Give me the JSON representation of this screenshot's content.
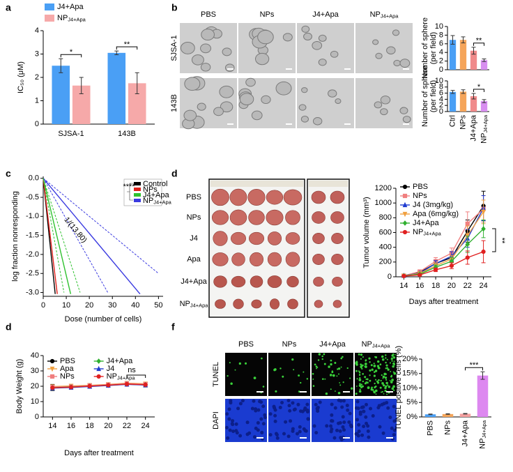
{
  "figure": {
    "panel_labels": [
      "a",
      "b",
      "c",
      "d",
      "d",
      "f"
    ],
    "b_columns": [
      "PBS",
      "NPs",
      "J4+Apa",
      {
        "text": "NP",
        "sub": "J4+Apa"
      }
    ],
    "b_rows": [
      "SJSA-1",
      "143B"
    ],
    "d_rows": [
      "PBS",
      "NPs",
      "J4",
      "Apa",
      "J4+Apa",
      {
        "text": "NP",
        "sub": "J4+Apa"
      }
    ],
    "f_columns": [
      "PBS",
      "NPs",
      "J4+Apa",
      {
        "text": "NP",
        "sub": "J4+Apa"
      }
    ],
    "f_rows": [
      "TUNEL",
      "DAPI"
    ]
  },
  "chart_data": [
    {
      "type": "bar",
      "ylabel": "IC₅₀ (μM)",
      "categories": [
        "SJSA-1",
        "143B"
      ],
      "series": [
        {
          "name": "J4+Apa",
          "color": "#4a9ff5",
          "values": [
            2.5,
            3.05
          ],
          "errors": [
            0.3,
            0.08
          ]
        },
        {
          "name": "NP",
          "name_sub": "J4+Apa",
          "color": "#f6a9a9",
          "values": [
            1.65,
            1.75
          ],
          "errors": [
            0.35,
            0.45
          ]
        }
      ],
      "ylim": [
        0,
        4
      ],
      "yticks": [
        0,
        1,
        2,
        3,
        4
      ],
      "legend": "upper left",
      "annotations": [
        {
          "text": "*",
          "between": [
            0,
            1
          ]
        },
        {
          "text": "**",
          "between": [
            2,
            3
          ]
        }
      ]
    },
    {
      "type": "bar",
      "ylabel": [
        "Number of sphere",
        "(per field)"
      ],
      "values": [
        6.9,
        6.9,
        4.4,
        2.2
      ],
      "errors": [
        1.0,
        0.7,
        0.8,
        0.3
      ],
      "colors": [
        "#4a9ff5",
        "#f5a55a",
        "#f08a8a",
        "#d88ef0"
      ],
      "ylim": [
        0,
        10
      ],
      "yticks": [
        0,
        2,
        4,
        6,
        8,
        10
      ],
      "annotations": [
        {
          "text": "**",
          "between": [
            2,
            3
          ]
        }
      ]
    },
    {
      "type": "bar",
      "ylabel": [
        "Number of sphere",
        "(per field)"
      ],
      "categories": [
        "Ctrl",
        "NPs",
        "J4+Apa",
        {
          "text": "NP",
          "sub": "J4+Apa"
        }
      ],
      "values": [
        6.4,
        6.5,
        5.0,
        3.4
      ],
      "errors": [
        0.5,
        0.6,
        0.9,
        0.5
      ],
      "colors": [
        "#4a9ff5",
        "#f5a55a",
        "#f08a8a",
        "#d88ef0"
      ],
      "ylim": [
        0,
        10
      ],
      "yticks": [
        0,
        2,
        4,
        6,
        8,
        10
      ],
      "x_tick_rotation": -90,
      "annotations": [
        {
          "text": "*",
          "between": [
            2,
            3
          ]
        }
      ]
    },
    {
      "type": "line",
      "ylabel": "log fraction nonresponding",
      "xlabel": "Dose (number of cells)",
      "xlim": [
        0,
        52
      ],
      "xticks": [
        0,
        10,
        20,
        30,
        40,
        50
      ],
      "ylim": [
        -3.1,
        0.05
      ],
      "yticks": [
        {
          "value": 0,
          "label": "0.0"
        },
        {
          "value": -0.5,
          "label": "-0.5"
        },
        {
          "value": -1,
          "label": "-1.0"
        },
        {
          "value": -1.5,
          "label": "-1.5"
        },
        {
          "value": -2,
          "label": "-2.0"
        },
        {
          "value": -2.5,
          "label": "-2.5"
        },
        {
          "value": -3,
          "label": "-3.0"
        }
      ],
      "legend": "upper right",
      "series": [
        {
          "name": "Control",
          "color": "#000000",
          "x": [
            0,
            5.2
          ],
          "values": [
            0,
            -3.04
          ]
        },
        {
          "name": "NPs",
          "color": "#e0201b",
          "x": [
            0,
            6.1
          ],
          "values": [
            0,
            -3.04
          ]
        },
        {
          "name": "J4+Apa",
          "color": "#2fc12f",
          "x": [
            0,
            11.9
          ],
          "values": [
            0,
            -3.04
          ]
        },
        {
          "name": "NP",
          "name_sub": "J4+Apa",
          "color": "#3a3ae0",
          "x": [
            0,
            42
          ],
          "values": [
            0,
            -3.04
          ]
        },
        {
          "color": "#3a3ae0",
          "dash": true,
          "x": [
            0,
            50
          ],
          "values": [
            0,
            -2.5
          ]
        },
        {
          "color": "#3a3ae0",
          "dash": true,
          "x": [
            0,
            28
          ],
          "values": [
            0,
            -3.0
          ]
        },
        {
          "color": "#2fc12f",
          "dash": true,
          "x": [
            0,
            16
          ],
          "values": [
            0,
            -3.0
          ]
        },
        {
          "color": "#2fc12f",
          "dash": true,
          "x": [
            0,
            9
          ],
          "values": [
            0,
            -3.0
          ]
        }
      ],
      "annotations": [
        {
          "text": "1/(13.80)"
        },
        {
          "text": "****"
        }
      ]
    },
    {
      "type": "line",
      "ylabel": "Tumor volume (mm³)",
      "xlabel": "Days after treatment",
      "x": [
        14,
        16,
        18,
        20,
        22,
        24
      ],
      "xlim": [
        13,
        25
      ],
      "xticks": [
        14,
        16,
        18,
        20,
        22,
        24
      ],
      "ylim": [
        0,
        1200
      ],
      "yticks": [
        0,
        200,
        400,
        600,
        800,
        1000,
        1200
      ],
      "legend": "upper left",
      "series": [
        {
          "name": "PBS",
          "color": "#000000",
          "marker": "circle",
          "values": [
            15,
            60,
            180,
            260,
            620,
            960
          ],
          "errors": [
            5,
            20,
            40,
            60,
            150,
            200
          ]
        },
        {
          "name": "NPs",
          "color": "#f07f7f",
          "marker": "square",
          "values": [
            15,
            70,
            210,
            320,
            720,
            920
          ],
          "errors": [
            5,
            25,
            50,
            70,
            160,
            180
          ]
        },
        {
          "name": "J4 (3mg/kg)",
          "color": "#1f3bd0",
          "marker": "triangle",
          "values": [
            15,
            50,
            180,
            280,
            520,
            930
          ],
          "errors": [
            5,
            20,
            40,
            60,
            120,
            170
          ]
        },
        {
          "name": "Apa (6mg/kg)",
          "color": "#f0a040",
          "marker": "triangle-down",
          "values": [
            12,
            45,
            150,
            240,
            560,
            880
          ],
          "errors": [
            5,
            20,
            40,
            50,
            130,
            160
          ]
        },
        {
          "name": "J4+Apa",
          "color": "#30b030",
          "marker": "diamond",
          "values": [
            12,
            35,
            130,
            210,
            440,
            650
          ],
          "errors": [
            5,
            15,
            30,
            50,
            110,
            120
          ]
        },
        {
          "name": "NP",
          "name_sub": "J4+Apa",
          "color": "#e02020",
          "marker": "circle",
          "values": [
            10,
            25,
            95,
            150,
            260,
            340
          ],
          "errors": [
            4,
            10,
            25,
            40,
            90,
            150
          ]
        }
      ],
      "annotations": [
        {
          "text": "**"
        }
      ]
    },
    {
      "type": "line",
      "ylabel": "Body Weight (g)",
      "xlabel": "Days after treatment",
      "x": [
        14,
        16,
        18,
        20,
        22,
        24
      ],
      "xlim": [
        13,
        25
      ],
      "xticks": [
        14,
        16,
        18,
        20,
        22,
        24
      ],
      "ylim": [
        0,
        40
      ],
      "yticks": [
        0,
        10,
        20,
        30,
        40
      ],
      "legend": "upper center",
      "legend_columns": 2,
      "series": [
        {
          "name": "PBS",
          "color": "#000000",
          "marker": "circle",
          "values": [
            19.2,
            19.6,
            20.2,
            20.8,
            21.5,
            21.0
          ],
          "errors": [
            2,
            1.5,
            1.5,
            1.2,
            1.5,
            1.5
          ]
        },
        {
          "name": "Apa",
          "color": "#f0a040",
          "marker": "triangle-down",
          "values": [
            19.8,
            20.2,
            20.6,
            21.2,
            22.0,
            21.6
          ]
        },
        {
          "name": "NPs",
          "color": "#f07f7f",
          "marker": "square",
          "values": [
            19.5,
            19.8,
            20.4,
            21.0,
            21.8,
            21.3
          ]
        },
        {
          "name": "J4+Apa",
          "color": "#30b030",
          "marker": "diamond",
          "values": [
            19.0,
            19.5,
            20.0,
            20.6,
            21.3,
            20.9
          ]
        },
        {
          "name": "J4",
          "color": "#1f3bd0",
          "marker": "triangle",
          "values": [
            18.8,
            19.2,
            19.8,
            20.5,
            21.2,
            20.8
          ]
        },
        {
          "name": "NP",
          "name_sub": "J4+Apa",
          "color": "#e02020",
          "marker": "circle",
          "values": [
            19.0,
            19.4,
            20.1,
            20.7,
            21.4,
            21.0
          ]
        }
      ],
      "annotations": [
        {
          "text": "ns"
        }
      ]
    },
    {
      "type": "bar",
      "ylabel": "TUNEL positive cells (%)",
      "categories": [
        "PBS",
        "NPs",
        "J4+Apa",
        {
          "text": "NP",
          "sub": "J4+Apa"
        }
      ],
      "values": [
        0.9,
        1.0,
        1.1,
        14.3
      ],
      "errors": [
        0.1,
        0.1,
        0.1,
        1.3
      ],
      "colors": [
        "#4a9ff5",
        "#f5a55a",
        "#f4a0a0",
        "#dd88f0"
      ],
      "ylim": [
        0,
        20
      ],
      "yticks": [
        {
          "value": 0,
          "label": "0%"
        },
        {
          "value": 5,
          "label": "5%"
        },
        {
          "value": 10,
          "label": "10%"
        },
        {
          "value": 15,
          "label": "15%"
        },
        {
          "value": 20,
          "label": "20%"
        }
      ],
      "x_tick_rotation": -90,
      "annotations": [
        {
          "text": "***",
          "between": [
            2,
            3
          ]
        }
      ]
    }
  ]
}
